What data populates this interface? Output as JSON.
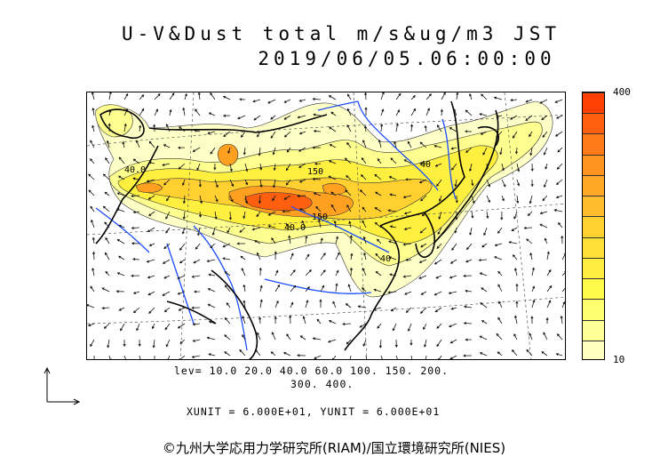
{
  "title": {
    "line1": "U-V&Dust total m/s&ug/m3 JST",
    "line2": "2019/06/05.06:00:00"
  },
  "colorbar": {
    "max_label": "400",
    "min_label": "10",
    "colors": [
      "#ff4000",
      "#ff6010",
      "#ff7a18",
      "#ff9420",
      "#ffa828",
      "#ffbc2c",
      "#ffd030",
      "#ffe038",
      "#ffee40",
      "#fffa48",
      "#ffff70",
      "#ffff98",
      "#ffffc0"
    ]
  },
  "levels": {
    "line1": "lev= 10.0 20.0 40.0 60.0 100. 150. 200.",
    "line2": "300. 400."
  },
  "units": {
    "line": "XUNIT = 6.000E+01, YUNIT = 6.000E+01"
  },
  "contour_labels": [
    "40.0",
    "150",
    "40.0",
    "150",
    "40",
    "40",
    "40"
  ],
  "credit": "©九州大学応用力学研究所(RIAM)/国立環境研究所(NIES)",
  "colors": {
    "land_border": "#000000",
    "river": "#1a4dff",
    "grid": "#444444"
  }
}
